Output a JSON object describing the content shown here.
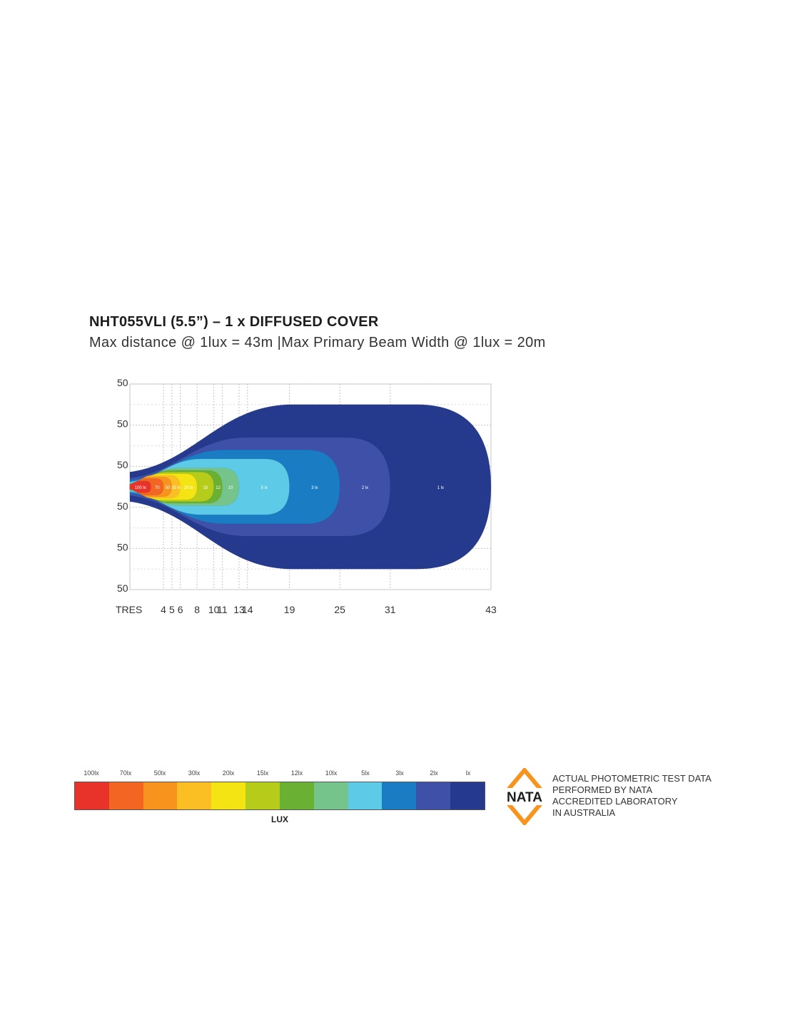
{
  "title": "NHT055VLI (5.5”) – 1 x DIFFUSED COVER",
  "subtitle": "Max distance @ 1lux = 43m  |Max Primary  Beam Width @ 1lux = 20m",
  "chart_data": {
    "type": "contour",
    "x_tick_labels": [
      "TRES",
      "4",
      "5",
      "6",
      "8",
      "10",
      "11",
      "13",
      "14",
      "19",
      "25",
      "31",
      "43"
    ],
    "x_tick_values": [
      0,
      4,
      5,
      6,
      8,
      10,
      11,
      13,
      14,
      19,
      25,
      31,
      43
    ],
    "y_tick_labels": [
      "50",
      "50",
      "50",
      "50",
      "50",
      "50"
    ],
    "xlim": [
      0,
      43
    ],
    "ylim": [
      -12.5,
      12.5
    ],
    "grid": true,
    "contours": [
      {
        "label": "1 lx",
        "lux": 1,
        "color": "#253a8c",
        "reach_m": 43,
        "half_width_m": 10
      },
      {
        "label": "2 lx",
        "lux": 2,
        "color": "#3e50a8",
        "reach_m": 31,
        "half_width_m": 6
      },
      {
        "label": "3 lx",
        "lux": 3,
        "color": "#1a7cc2",
        "reach_m": 25,
        "half_width_m": 4.5
      },
      {
        "label": "5 lx",
        "lux": 5,
        "color": "#5dcae8",
        "reach_m": 19,
        "half_width_m": 3.4
      },
      {
        "label": "10",
        "lux": 10,
        "color": "#74c48c",
        "reach_m": 13,
        "half_width_m": 2.3
      },
      {
        "label": "12",
        "lux": 12,
        "color": "#6ab032",
        "reach_m": 11,
        "half_width_m": 2.0
      },
      {
        "label": "15",
        "lux": 15,
        "color": "#b6cc1a",
        "reach_m": 10,
        "half_width_m": 1.8
      },
      {
        "label": "20 lx",
        "lux": 20,
        "color": "#f5e414",
        "reach_m": 8,
        "half_width_m": 1.6
      },
      {
        "label": "30 lx",
        "lux": 30,
        "color": "#fbbf24",
        "reach_m": 6,
        "half_width_m": 1.4
      },
      {
        "label": "50",
        "lux": 50,
        "color": "#f7941e",
        "reach_m": 5,
        "half_width_m": 1.2
      },
      {
        "label": "70",
        "lux": 70,
        "color": "#f26522",
        "reach_m": 4,
        "half_width_m": 1.0
      },
      {
        "label": "100 lx",
        "lux": 100,
        "color": "#e8332a",
        "reach_m": 2.5,
        "half_width_m": 0.7
      }
    ]
  },
  "legend": {
    "title": "LUX",
    "items": [
      {
        "label": "100lx",
        "color": "#e8332a"
      },
      {
        "label": "70lx",
        "color": "#f26522"
      },
      {
        "label": "50lx",
        "color": "#f7941e"
      },
      {
        "label": "30lx",
        "color": "#fbbf24"
      },
      {
        "label": "20lx",
        "color": "#f5e414"
      },
      {
        "label": "15lx",
        "color": "#b6cc1a"
      },
      {
        "label": "12lx",
        "color": "#6ab032"
      },
      {
        "label": "10lx",
        "color": "#74c48c"
      },
      {
        "label": "5lx",
        "color": "#5dcae8"
      },
      {
        "label": "3lx",
        "color": "#1a7cc2"
      },
      {
        "label": "2lx",
        "color": "#3e50a8"
      },
      {
        "label": "lx",
        "color": "#253a8c"
      }
    ]
  },
  "nata": {
    "logo_text": "NATA",
    "logo_color": "#f7941e",
    "lines": [
      "ACTUAL PHOTOMETRIC TEST DATA",
      "PERFORMED BY NATA",
      "ACCREDITED LABORATORY",
      "IN AUSTRALIA"
    ]
  }
}
